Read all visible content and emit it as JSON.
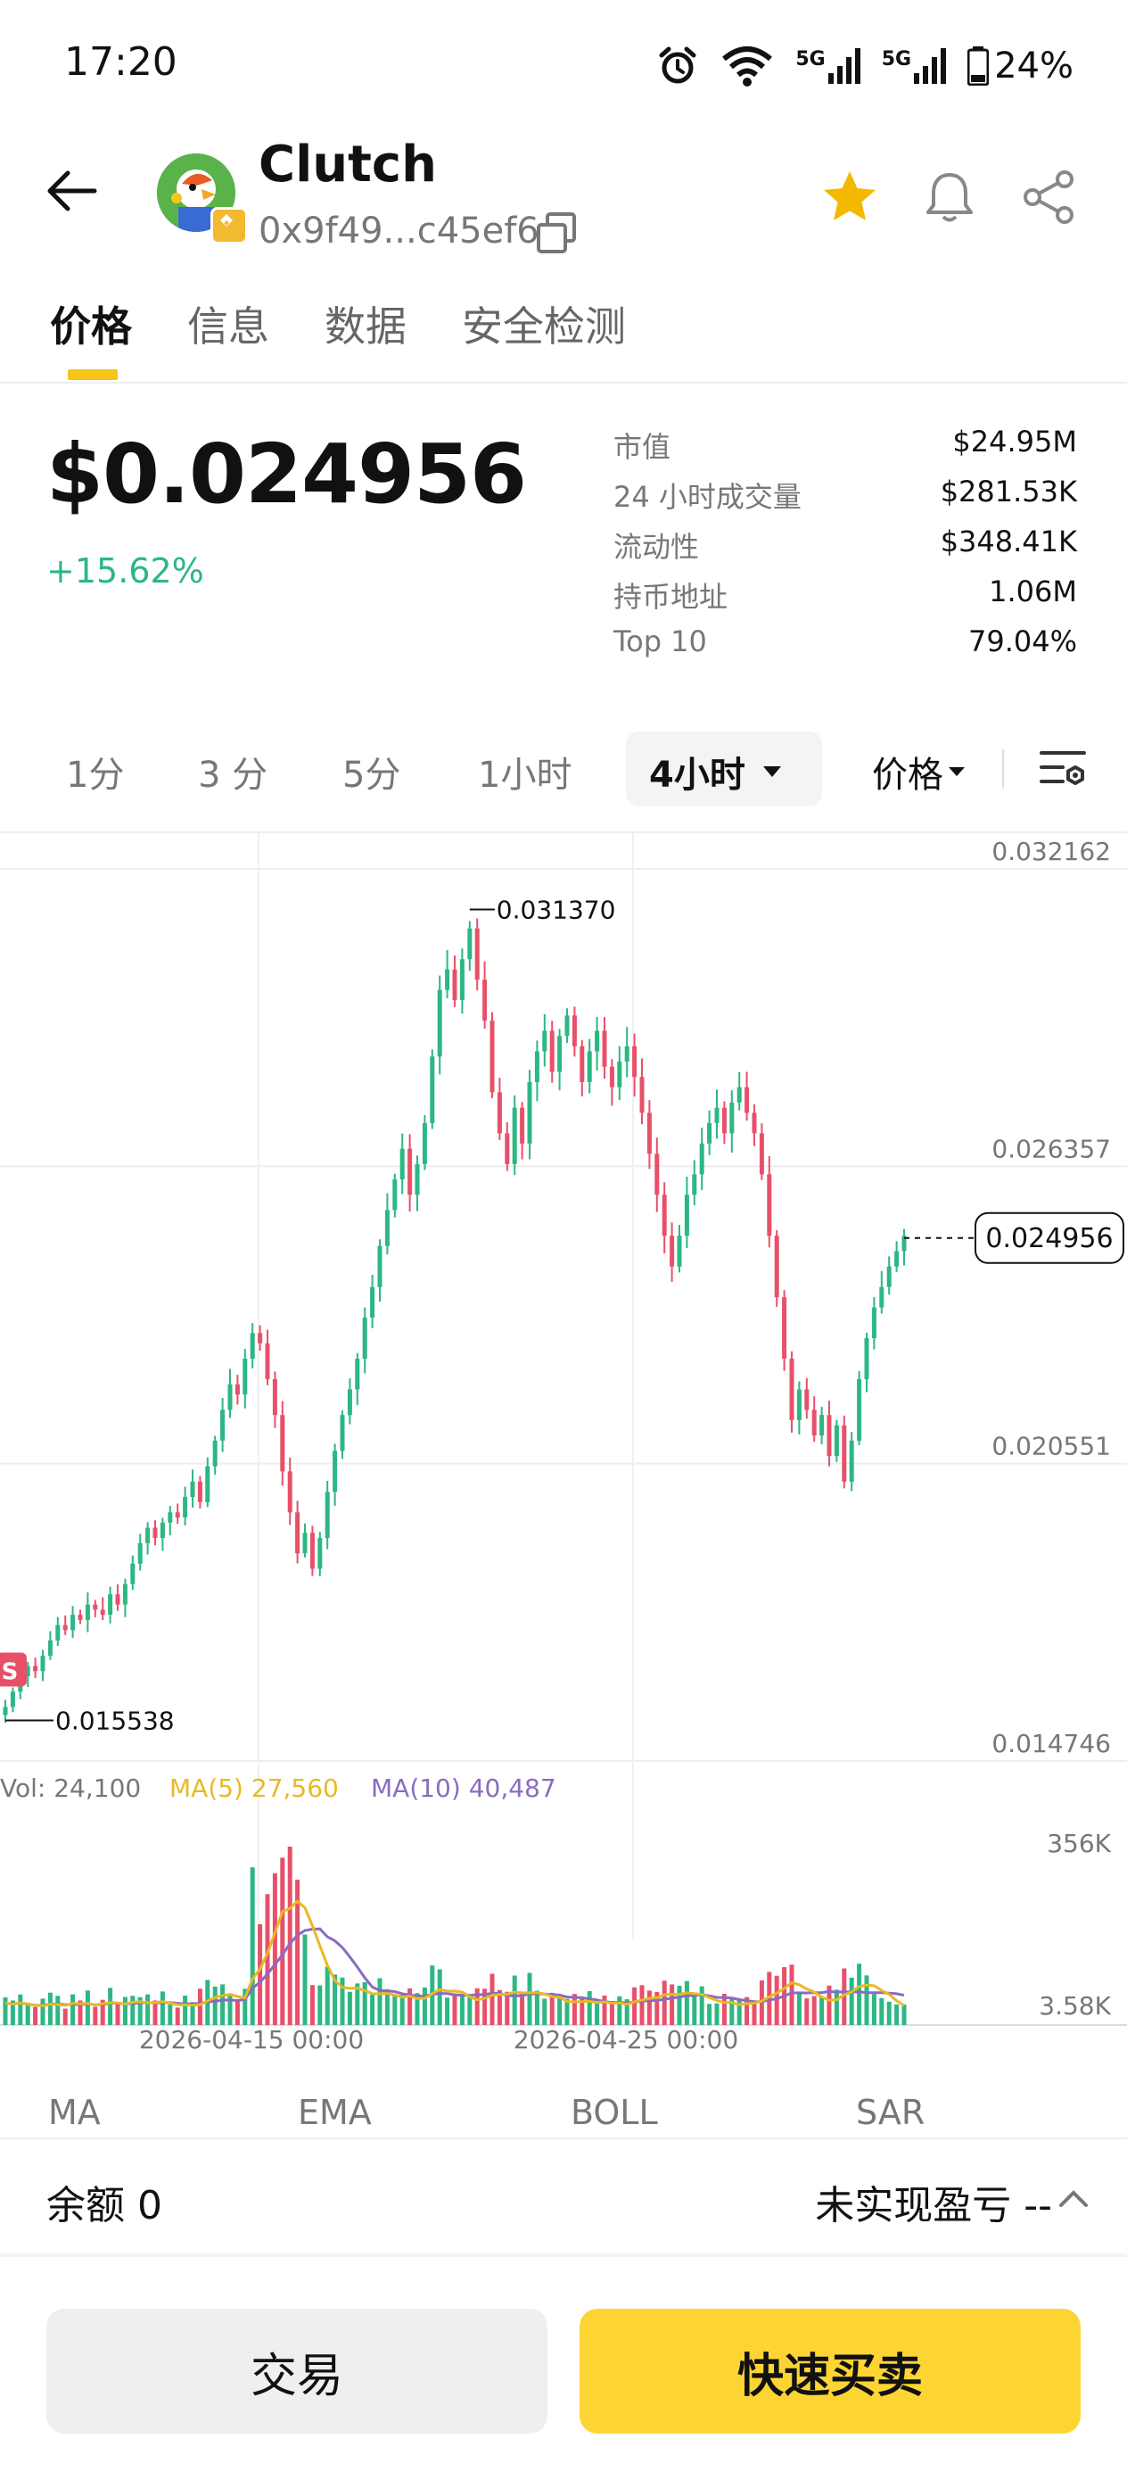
{
  "status_bar": {
    "time": "17:20",
    "battery": "24%",
    "signal1": "5G",
    "signal2": "5G"
  },
  "header": {
    "token_name": "Clutch",
    "address": "0x9f49...c45ef6"
  },
  "tabs": [
    {
      "label": "价格"
    },
    {
      "label": "信息"
    },
    {
      "label": "数据"
    },
    {
      "label": "安全检测"
    }
  ],
  "price_panel": {
    "price": "$0.024956",
    "change": "+15.62%",
    "stats": [
      {
        "label": "市值",
        "value": "$24.95M"
      },
      {
        "label": "24 小时成交量",
        "value": "$281.53K"
      },
      {
        "label": "流动性",
        "value": "$348.41K"
      },
      {
        "label": "持币地址",
        "value": "1.06M"
      },
      {
        "label": "Top 10",
        "value": "79.04%"
      }
    ]
  },
  "timeframes": {
    "options": [
      "1分",
      "3 分",
      "5分",
      "1小时"
    ],
    "selected": "4小时",
    "price_toggle": "价格"
  },
  "chart_data": {
    "type": "candlestick",
    "interval": "4h",
    "y_axis_labels": [
      "0.032162",
      "0.026357",
      "0.020551",
      "0.014746"
    ],
    "ylim": [
      0.014746,
      0.032162
    ],
    "x_axis_labels": [
      "2026-04-15 00:00",
      "2026-04-25 00:00"
    ],
    "annotations": {
      "high": "0.031370",
      "low": "0.015538",
      "last_price": "0.024956",
      "sell_marker": "S"
    },
    "close_series": [
      0.0158,
      0.0161,
      0.0164,
      0.0166,
      0.0165,
      0.0168,
      0.0171,
      0.0174,
      0.0173,
      0.0176,
      0.0175,
      0.0178,
      0.0177,
      0.0176,
      0.018,
      0.0178,
      0.0182,
      0.0186,
      0.019,
      0.0193,
      0.0191,
      0.0194,
      0.0196,
      0.0195,
      0.0199,
      0.0202,
      0.0198,
      0.0205,
      0.021,
      0.0216,
      0.0221,
      0.0219,
      0.0226,
      0.0231,
      0.0229,
      0.0222,
      0.0215,
      0.0204,
      0.0196,
      0.0188,
      0.0192,
      0.0185,
      0.0191,
      0.02,
      0.0208,
      0.0215,
      0.022,
      0.0226,
      0.0234,
      0.024,
      0.0248,
      0.0255,
      0.0261,
      0.0267,
      0.0258,
      0.0264,
      0.0272,
      0.0285,
      0.0298,
      0.0302,
      0.0296,
      0.0304,
      0.031,
      0.03,
      0.0292,
      0.0278,
      0.027,
      0.0264,
      0.0275,
      0.0268,
      0.028,
      0.0286,
      0.029,
      0.0282,
      0.0289,
      0.0293,
      0.0287,
      0.028,
      0.0286,
      0.029,
      0.0283,
      0.0279,
      0.0284,
      0.0287,
      0.0281,
      0.0274,
      0.0266,
      0.0258,
      0.025,
      0.0244,
      0.025,
      0.0258,
      0.0262,
      0.0268,
      0.0272,
      0.0275,
      0.027,
      0.0276,
      0.0279,
      0.0274,
      0.027,
      0.0262,
      0.025,
      0.0238,
      0.0226,
      0.0214,
      0.022,
      0.0216,
      0.0211,
      0.0215,
      0.0207,
      0.0213,
      0.0202,
      0.021,
      0.0222,
      0.023,
      0.0236,
      0.024,
      0.0244,
      0.0247,
      0.025
    ],
    "volume": {
      "labels": {
        "vol": "Vol: 24,100",
        "ma5": "MA(5) 27,560",
        "ma10": "MA(10) 40,487"
      },
      "y_axis_labels": [
        "356K",
        "3.58K"
      ],
      "ylim": [
        3580,
        356000
      ]
    }
  },
  "indicators": [
    "MA",
    "EMA",
    "BOLL",
    "SAR"
  ],
  "footer": {
    "balance": "余额 0",
    "pnl": "未实现盈亏 --",
    "trade_button": "交易",
    "quick_button": "快速买卖"
  },
  "colors": {
    "up": "#2cb783",
    "down": "#e8506a",
    "accent": "#fcd535",
    "ma5": "#e8b923",
    "ma10": "#8a6bc1"
  }
}
